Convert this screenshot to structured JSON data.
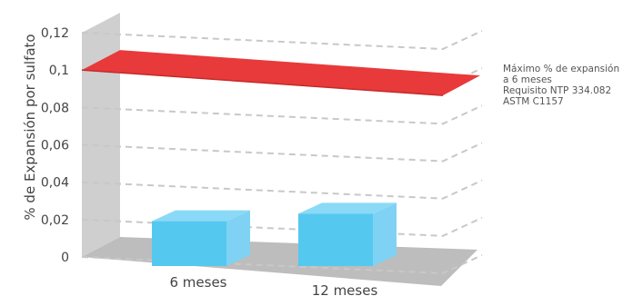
{
  "chart_data": {
    "type": "bar",
    "categories": [
      "6 meses",
      "12 meses"
    ],
    "values": [
      0.024,
      0.028
    ],
    "ylabel": "% de Expansión por sulfato",
    "ylim": [
      0,
      0.12
    ],
    "yticks": [
      "0",
      "0,02",
      "0,04",
      "0,06",
      "0,08",
      "0,1",
      "0,12"
    ],
    "grid": true,
    "threshold": {
      "value": 0.1,
      "label_lines": [
        "Máximo % de expansión",
        "a 6 meses",
        "Requisito NTP 334.082",
        "ASTM C1157"
      ]
    },
    "colors": {
      "bar_front": "#55c8f0",
      "bar_top": "#8ad9f7",
      "bar_side": "#7fd2f4",
      "threshold": "#e83a3a",
      "threshold_edge": "#c52a2a",
      "wall": "#cfcfcf",
      "floor": "#bdbdbd",
      "grid": "#c8c8c8"
    }
  }
}
